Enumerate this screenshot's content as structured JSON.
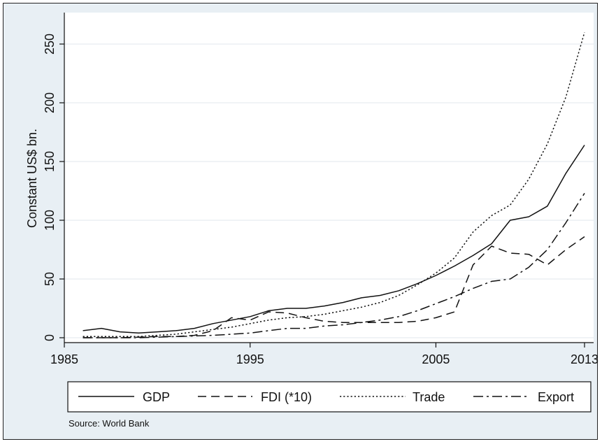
{
  "chart_data": {
    "type": "line",
    "title": "",
    "xlabel": "",
    "ylabel": "Constant US$ bn.",
    "xlim": [
      1985,
      2013
    ],
    "ylim": [
      0,
      260
    ],
    "x_ticks": [
      "1985",
      "1995",
      "2005",
      "2013"
    ],
    "y_ticks": [
      "0",
      "50",
      "100",
      "150",
      "200",
      "250"
    ],
    "grid": "horizontal",
    "legend_position": "bottom",
    "note": "Source: World Bank",
    "x": [
      1986,
      1987,
      1988,
      1989,
      1990,
      1991,
      1992,
      1993,
      1994,
      1995,
      1996,
      1997,
      1998,
      1999,
      2000,
      2001,
      2002,
      2003,
      2004,
      2005,
      2006,
      2007,
      2008,
      2009,
      2010,
      2011,
      2012,
      2013
    ],
    "series": [
      {
        "name": "GDP",
        "dash": "solid",
        "values": [
          6,
          8,
          5,
          4,
          5,
          6,
          8,
          12,
          15,
          18,
          23,
          25,
          25,
          27,
          30,
          34,
          36,
          40,
          46,
          53,
          61,
          70,
          80,
          100,
          103,
          112,
          140,
          164
        ]
      },
      {
        "name": "FDI (*10)",
        "dash": "dashed",
        "values": [
          0,
          0,
          0,
          0.5,
          1,
          1,
          2,
          6,
          17,
          15,
          22,
          21,
          17,
          14,
          13,
          13,
          13,
          13,
          14,
          17,
          22,
          62,
          78,
          72,
          71,
          62,
          75,
          86
        ]
      },
      {
        "name": "Trade",
        "dash": "dotted",
        "values": [
          1,
          1,
          1,
          1,
          2,
          3,
          5,
          7,
          9,
          12,
          15,
          17,
          18,
          20,
          23,
          26,
          30,
          36,
          45,
          55,
          68,
          90,
          104,
          113,
          135,
          165,
          205,
          260
        ]
      },
      {
        "name": "Export",
        "dash": "dashdot",
        "values": [
          0,
          0,
          0,
          0,
          0.5,
          1,
          1.5,
          2,
          3,
          4,
          6,
          8,
          8,
          10,
          11,
          13,
          15,
          18,
          23,
          29,
          35,
          42,
          48,
          50,
          60,
          75,
          98,
          123
        ]
      }
    ]
  }
}
